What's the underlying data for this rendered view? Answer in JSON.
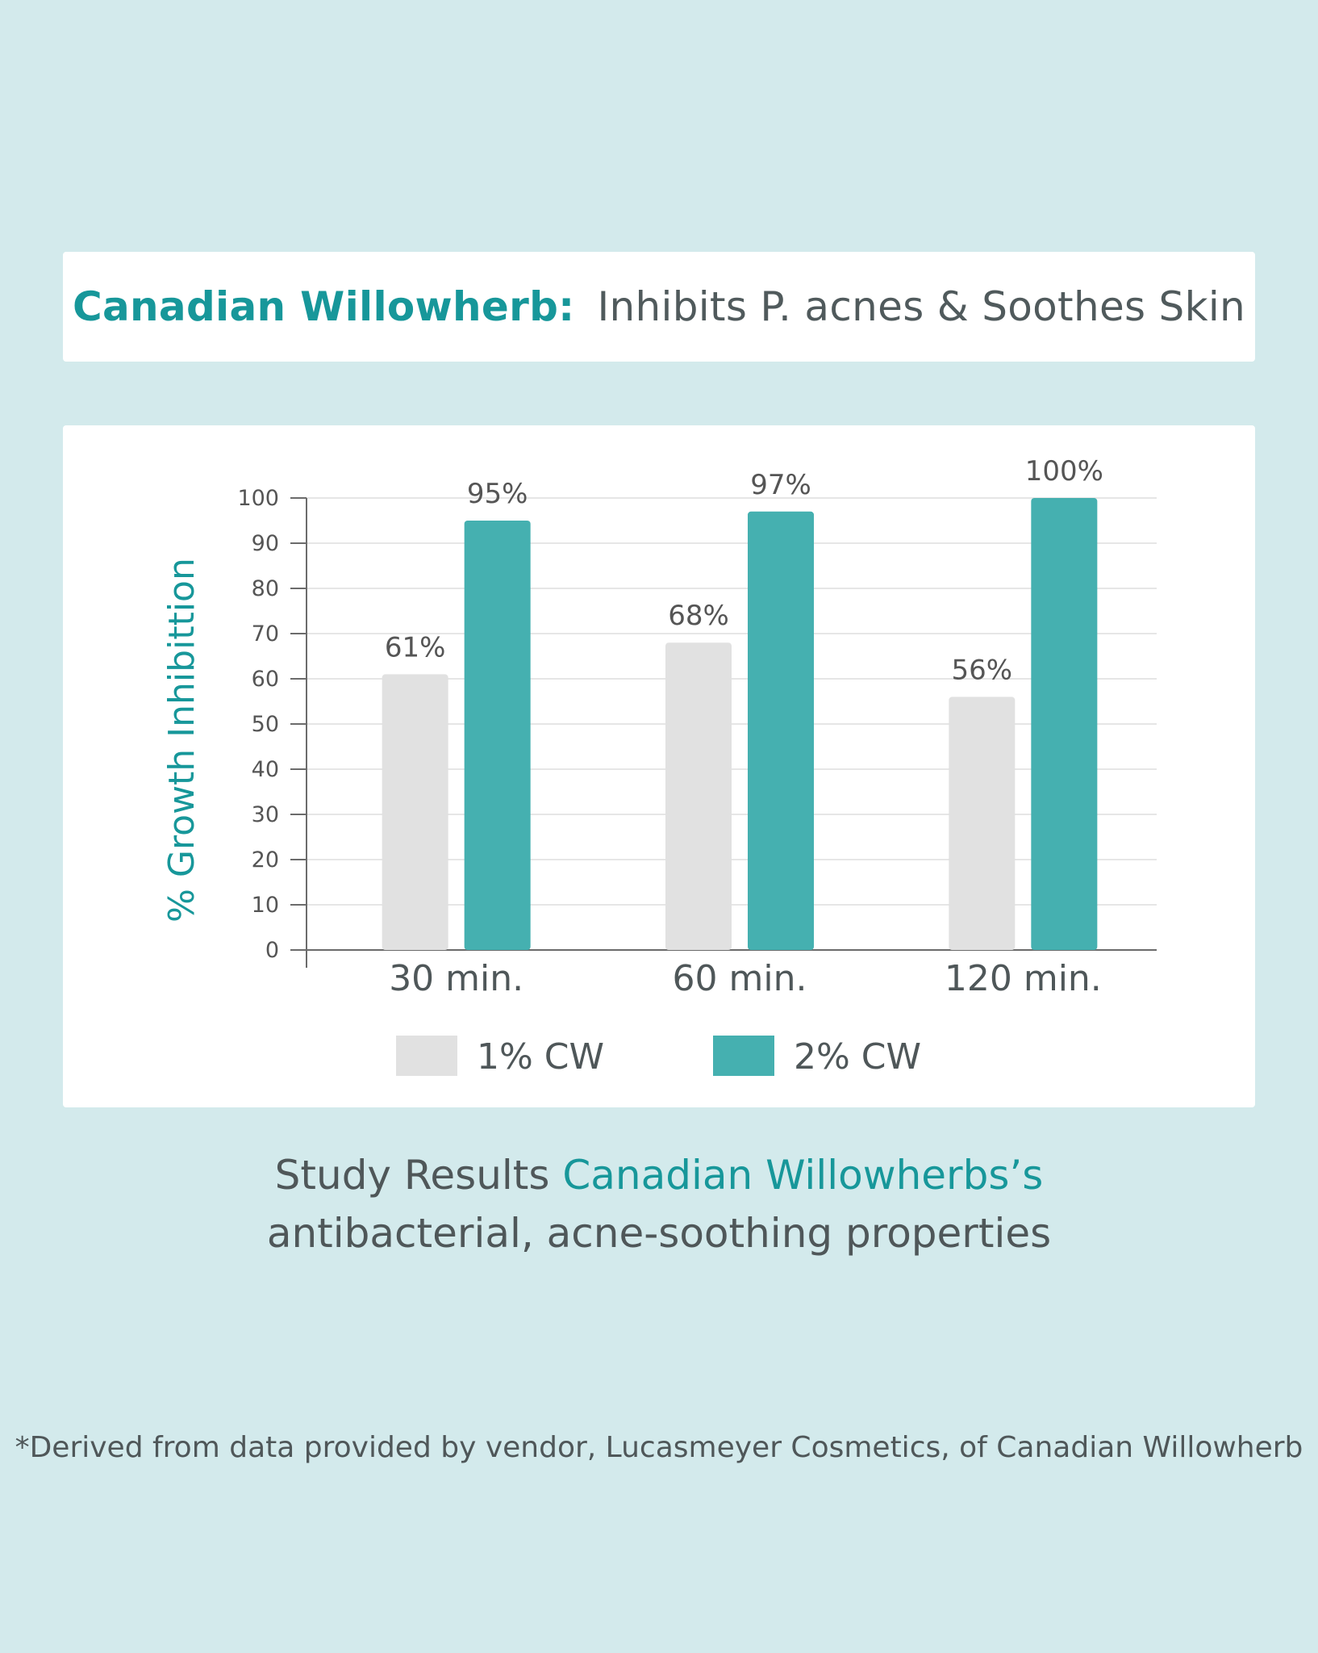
{
  "header": {
    "brand": "Canadian Willowherb:",
    "subtitle": "Inhibits P. acnes & Soothes Skin"
  },
  "colors": {
    "series_1": "#e1e1e1",
    "series_2": "#45b0b0",
    "accent": "#17979a",
    "text": "#4f5759",
    "background": "#d3eaec"
  },
  "chart_data": {
    "type": "bar",
    "categories": [
      "30 min.",
      "60 min.",
      "120 min."
    ],
    "series": [
      {
        "name": "1% CW",
        "values": [
          61,
          68,
          56
        ],
        "labels": [
          "61%",
          "68%",
          "56%"
        ]
      },
      {
        "name": "2% CW",
        "values": [
          95,
          97,
          100
        ],
        "labels": [
          "95%",
          "97%",
          "100%"
        ]
      }
    ],
    "ylabel": "% Growth Inhibittion",
    "ylim": [
      0,
      100
    ],
    "yticks": [
      0,
      10,
      20,
      30,
      40,
      50,
      60,
      70,
      80,
      90,
      100
    ],
    "grid": true,
    "legend": "bottom"
  },
  "caption": {
    "line1_plain": "Study Results",
    "line1_accent": "Canadian Willowherbs’s",
    "line2": "antibacterial, acne-soothing properties"
  },
  "footnote": "*Derived from data provided by vendor, Lucasmeyer Cosmetics, of Canadian Willowherb"
}
